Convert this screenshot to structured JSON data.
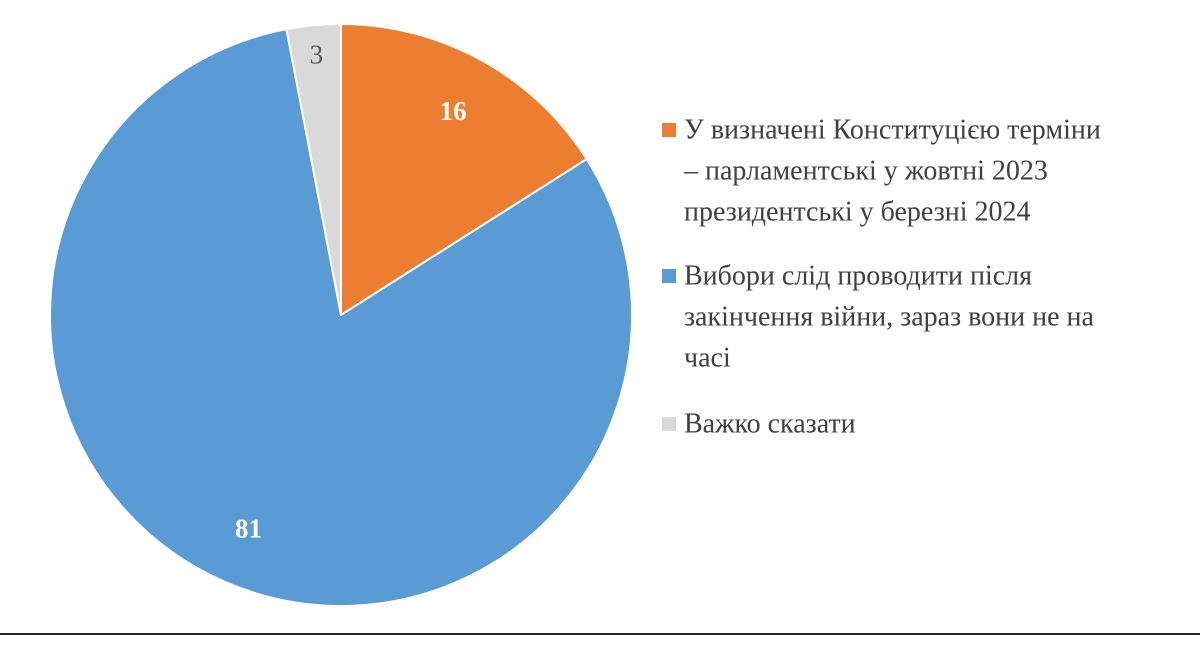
{
  "chart_data": {
    "type": "pie",
    "start_angle_deg": 0,
    "direction": "clockwise",
    "categories": [
      "У визначені Конституцією терміни – парламентські у жовтні 2023 президентські у березні 2024",
      "Вибори слід проводити після закінчення війни, зараз вони не на часі",
      "Важко сказати"
    ],
    "values": [
      16,
      81,
      3
    ],
    "colors": [
      "#ED7D31",
      "#5B9BD5",
      "#D9D9D9"
    ],
    "data_labels": [
      {
        "text": "16",
        "color": "#ffffff",
        "bold": true
      },
      {
        "text": "81",
        "color": "#ffffff",
        "bold": true
      },
      {
        "text": "3",
        "color": "#595959",
        "bold": false
      }
    ],
    "legend": {
      "placement": "right",
      "entries": [
        {
          "lines": [
            "У визначені Конституцією терміни",
            "– парламентські у жовтні 2023",
            "президентські у березні 2024"
          ]
        },
        {
          "lines": [
            "Вибори слід проводити після",
            "закінчення війни, зараз вони не на",
            "часі"
          ]
        },
        {
          "lines": [
            "Важко сказати"
          ]
        }
      ]
    }
  }
}
